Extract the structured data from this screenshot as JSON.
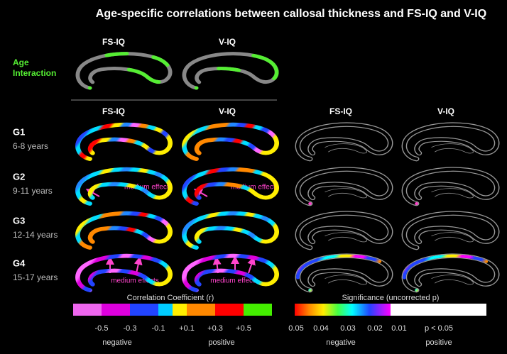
{
  "title": "Age-specific correlations between callosal thickness and FS-IQ and V-IQ",
  "age_interaction": {
    "row_label": [
      "Age",
      "Interaction"
    ],
    "columns": [
      "FS-IQ",
      "V-IQ"
    ]
  },
  "correlation_columns": [
    "FS-IQ",
    "V-IQ"
  ],
  "significance_columns": [
    "FS-IQ",
    "V-IQ"
  ],
  "groups": [
    {
      "label": "G1",
      "age": "6-8 years"
    },
    {
      "label": "G2",
      "age": "9-11 years"
    },
    {
      "label": "G3",
      "age": "12-14 years"
    },
    {
      "label": "G4",
      "age": "15-17 years"
    }
  ],
  "annotations": {
    "g2": [
      "medium effect",
      "medium effect"
    ],
    "g4": [
      "medium effects",
      "medium effects"
    ]
  },
  "legend_correlation": {
    "title": "Correlation Coefficient (r)",
    "ticks": [
      "-0.5",
      "-0.3",
      "-0.1",
      "+0.1",
      "+0.3",
      "+0.5"
    ],
    "negative": "negative",
    "positive": "positive"
  },
  "legend_significance": {
    "title": "Significance (uncorrected p)",
    "ticks": [
      "0.05",
      "0.04",
      "0.03",
      "0.02",
      "0.01"
    ],
    "threshold": "p < 0.05",
    "negative": "negative",
    "positive": "positive"
  }
}
